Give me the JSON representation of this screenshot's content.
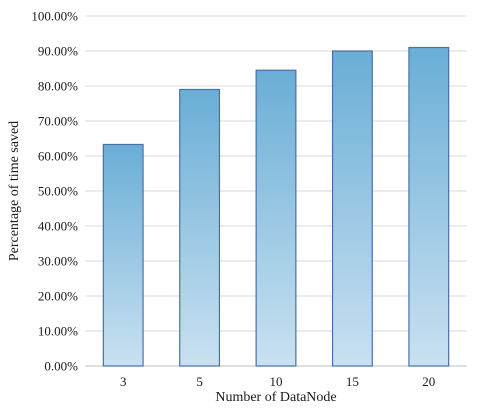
{
  "chart_data": {
    "type": "bar",
    "title": "",
    "xlabel": "Number of DataNode",
    "ylabel": "Percentage of time saved",
    "categories": [
      "3",
      "5",
      "10",
      "15",
      "20"
    ],
    "values": [
      63.3,
      79.0,
      84.5,
      90.0,
      91.0
    ],
    "ylim": [
      0,
      100
    ],
    "yticks": [
      0,
      10,
      20,
      30,
      40,
      50,
      60,
      70,
      80,
      90,
      100
    ],
    "ytick_labels": [
      "0.00%",
      "10.00%",
      "20.00%",
      "30.00%",
      "40.00%",
      "50.00%",
      "60.00%",
      "70.00%",
      "80.00%",
      "90.00%",
      "100.00%"
    ],
    "grid": "horizontal",
    "legend": "none",
    "colors": {
      "bar_top": "#6aaed6",
      "bar_bottom": "#c9e1f1",
      "bar_stroke": "#4a6fa8",
      "grid": "#d9d9d9",
      "axis": "#bfbfbf"
    }
  }
}
